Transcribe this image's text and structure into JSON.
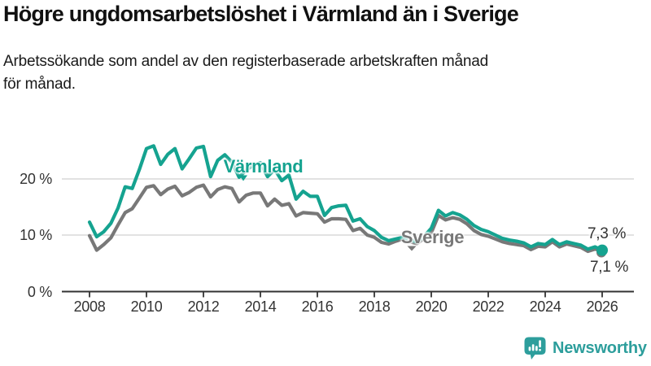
{
  "title": "Högre ungdomsarbetslöshet i Värmland än i Sverige",
  "subtitle_lines": [
    "Arbetssökande som andel av den registerbaserade arbetskraften månad",
    "för månad."
  ],
  "colors": {
    "varmland": "#15a390",
    "sverige": "#787878",
    "axis": "#333333",
    "grid": "#d9d9d9",
    "text": "#1a1a1a",
    "brand": "#2d9e9c"
  },
  "footer": {
    "brand": "Newsworthy",
    "icon": "bar-chart-speech-bubble-icon"
  },
  "chart_data": {
    "type": "line",
    "title": "Högre ungdomsarbetslöshet i Värmland än i Sverige",
    "xlabel": "",
    "ylabel": "Arbetssökande som andel av den registerbaserade arbetskraften",
    "grid": "horizontal",
    "legend_position": "inline-labels",
    "x_start_year": 2008,
    "x_step_years": 0.25,
    "xlim": [
      2007,
      2027.1
    ],
    "ylim": [
      0,
      28
    ],
    "y_ticks": [
      "0 %",
      "10 %",
      "20 %"
    ],
    "y_tick_values": [
      0,
      10,
      20
    ],
    "x_ticks": [
      2008,
      2010,
      2012,
      2014,
      2016,
      2018,
      2020,
      2022,
      2024,
      2026
    ],
    "series": [
      {
        "name": "Värmland",
        "color": "#15a390",
        "end_label": "7,3 %",
        "end_value": 7.3,
        "values": [
          12.3,
          9.7,
          10.6,
          12.1,
          14.8,
          18.6,
          18.3,
          21.7,
          25.4,
          25.9,
          22.6,
          24.4,
          25.4,
          21.8,
          23.6,
          25.5,
          25.8,
          20.4,
          23.3,
          24.3,
          23.0,
          20.3,
          21.6,
          22.4,
          22.9,
          20.4,
          21.7,
          19.7,
          20.7,
          16.4,
          17.8,
          16.9,
          16.9,
          13.5,
          14.9,
          15.2,
          15.3,
          12.5,
          12.9,
          11.5,
          10.8,
          9.6,
          9.0,
          9.3,
          9.6,
          9.1,
          8.8,
          9.8,
          11.2,
          14.4,
          13.4,
          14.0,
          13.6,
          12.8,
          11.7,
          11.0,
          10.6,
          10.0,
          9.4,
          9.1,
          8.9,
          8.6,
          7.9,
          8.5,
          8.3,
          9.2,
          8.3,
          8.8,
          8.5,
          8.2,
          7.5,
          7.9,
          7.3
        ]
      },
      {
        "name": "Sverige",
        "color": "#787878",
        "end_label": "7,1 %",
        "end_value": 7.1,
        "values": [
          9.9,
          7.3,
          8.3,
          9.5,
          11.8,
          14.0,
          14.7,
          16.6,
          18.5,
          18.8,
          17.2,
          18.2,
          18.7,
          17.0,
          17.6,
          18.5,
          18.9,
          16.8,
          18.1,
          18.6,
          18.3,
          15.9,
          17.1,
          17.5,
          17.5,
          15.2,
          16.4,
          15.3,
          15.6,
          13.4,
          14.0,
          13.9,
          13.8,
          12.3,
          12.9,
          12.9,
          12.8,
          10.8,
          11.2,
          10.0,
          9.6,
          8.7,
          8.4,
          8.9,
          9.3,
          8.8,
          8.5,
          9.4,
          10.4,
          13.5,
          12.7,
          13.1,
          12.8,
          12.0,
          10.8,
          10.1,
          9.8,
          9.3,
          8.8,
          8.5,
          8.3,
          8.1,
          7.4,
          8.0,
          7.9,
          8.8,
          7.9,
          8.4,
          8.1,
          7.8,
          7.1,
          7.5,
          7.1
        ]
      }
    ]
  }
}
